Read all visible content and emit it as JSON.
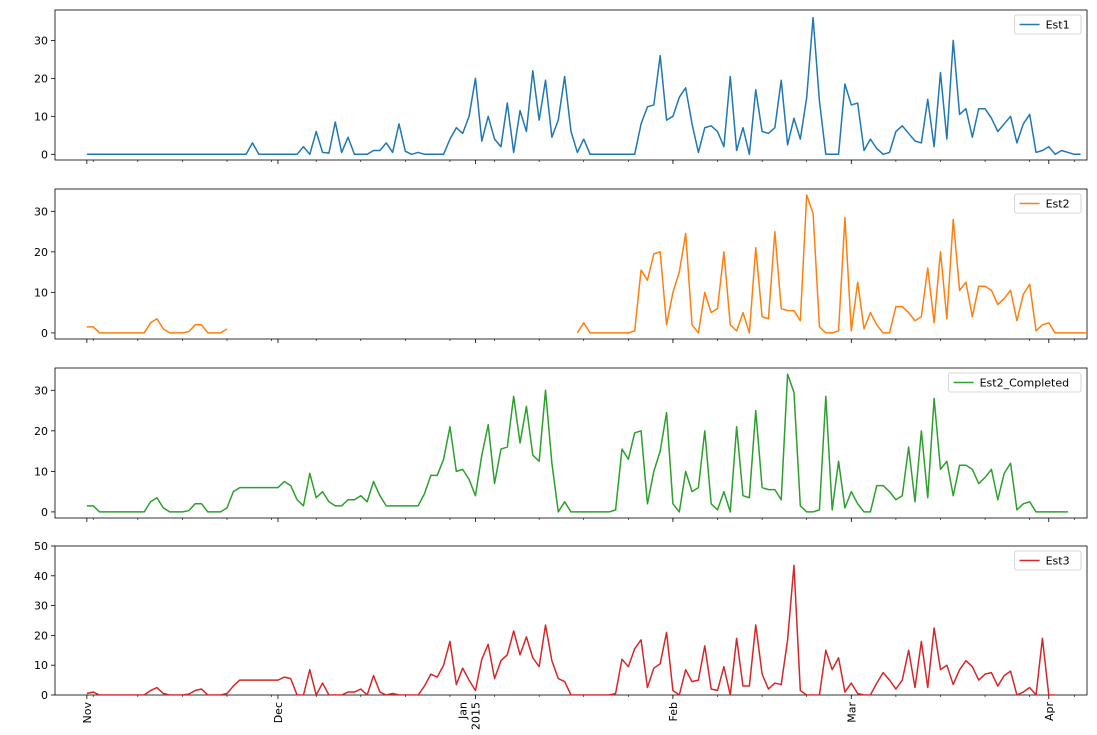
{
  "chart_data": {
    "type": "line",
    "x_range": [
      "2014-10-27",
      "2015-04-07"
    ],
    "x_ticks": [
      {
        "date": "2014-11-01",
        "label": "Nov"
      },
      {
        "date": "2014-12-01",
        "label": "Dec"
      },
      {
        "date": "2015-01-01",
        "label": "Jan\n2015"
      },
      {
        "date": "2015-02-01",
        "label": "Feb"
      },
      {
        "date": "2015-03-01",
        "label": "Mar"
      },
      {
        "date": "2015-04-01",
        "label": "Apr"
      }
    ],
    "minor_ticks_weekly": true,
    "x_start": "2014-11-01",
    "x_step_days": 1,
    "legend_loc": "upper right",
    "grid": false,
    "panels": [
      {
        "series": {
          "name": "Est1",
          "color": "#1f77b4"
        },
        "ylim": [
          -1.5,
          38
        ],
        "yticks": [
          0,
          10,
          20,
          30
        ],
        "values": [
          0,
          0,
          0,
          0,
          0,
          0,
          0,
          0,
          0,
          0,
          0,
          0,
          0,
          0,
          0,
          0,
          0,
          0,
          0,
          0,
          0,
          0,
          0,
          0,
          0,
          0,
          3,
          0,
          0,
          0,
          0,
          0,
          0,
          0,
          2,
          0,
          6,
          0.5,
          0.3,
          8.5,
          0.5,
          4.5,
          0,
          0,
          0,
          1,
          1,
          3,
          0.5,
          8,
          0.8,
          0,
          0.5,
          0,
          0,
          0,
          0,
          4,
          7,
          5.5,
          10,
          20,
          3.5,
          10,
          4,
          2,
          13.5,
          0.5,
          11.5,
          6,
          22,
          9,
          19.5,
          4.5,
          9,
          20.5,
          6,
          0.5,
          4,
          0,
          0,
          0,
          0,
          0,
          0,
          0,
          0,
          8,
          12.5,
          13,
          26,
          9,
          10,
          15,
          17.5,
          8,
          0.5,
          7,
          7.5,
          6,
          2,
          20.5,
          1,
          7,
          0,
          17,
          6,
          5.5,
          7,
          19.5,
          2.5,
          9.5,
          4,
          15,
          36,
          14,
          0,
          0,
          0,
          18.5,
          13,
          13.5,
          1,
          4,
          1.5,
          0,
          0.5,
          6,
          7.5,
          5.5,
          3.5,
          3,
          14.5,
          2,
          21.5,
          4,
          30,
          10.5,
          12,
          4.5,
          12,
          12,
          9.5,
          6,
          8,
          10,
          3,
          8,
          10.5,
          0.5,
          1,
          2,
          0,
          1,
          0.5,
          0,
          0
        ]
      },
      {
        "series": {
          "name": "Est2",
          "color": "#ff7f0e"
        },
        "ylim": [
          -1.5,
          35.5
        ],
        "yticks": [
          0,
          10,
          20,
          30
        ],
        "values": [
          1.5,
          1.5,
          0,
          0,
          0,
          0,
          0,
          0,
          0,
          0,
          2.5,
          3.5,
          1,
          0,
          0,
          0,
          0.3,
          2,
          2,
          0,
          0,
          0,
          1,
          null,
          null,
          null,
          null,
          null,
          null,
          null,
          null,
          null,
          null,
          null,
          null,
          null,
          null,
          null,
          null,
          null,
          null,
          null,
          null,
          null,
          null,
          null,
          null,
          null,
          null,
          null,
          null,
          null,
          null,
          null,
          null,
          null,
          null,
          null,
          null,
          null,
          null,
          null,
          null,
          null,
          null,
          null,
          null,
          null,
          null,
          null,
          null,
          null,
          null,
          null,
          null,
          null,
          null,
          0,
          2.5,
          0,
          0,
          0,
          0,
          0,
          0,
          0,
          0.5,
          15.5,
          13,
          19.5,
          20,
          2,
          10,
          15,
          24.5,
          2,
          0,
          10,
          5,
          6,
          20,
          2,
          0.5,
          5,
          0,
          21,
          4,
          3.5,
          25,
          6,
          5.5,
          5.5,
          3,
          34,
          29.5,
          1.5,
          0,
          0,
          0.5,
          28.5,
          0.5,
          12.5,
          1,
          5,
          2,
          0,
          0,
          6.5,
          6.5,
          5,
          3,
          4,
          16,
          2.5,
          20,
          3.5,
          28,
          10.5,
          12.5,
          4,
          11.5,
          11.5,
          10.5,
          7,
          8.5,
          10.5,
          3,
          9.5,
          12,
          0.5,
          2,
          2.5,
          0,
          0,
          0,
          0,
          0,
          0
        ]
      },
      {
        "series": {
          "name": "Est2_Completed",
          "color": "#2ca02c"
        },
        "ylim": [
          -1.5,
          35.5
        ],
        "yticks": [
          0,
          10,
          20,
          30
        ],
        "values": [
          1.5,
          1.5,
          0,
          0,
          0,
          0,
          0,
          0,
          0,
          0,
          2.5,
          3.5,
          1,
          0,
          0,
          0,
          0.3,
          2,
          2,
          0,
          0,
          0,
          1,
          5,
          6,
          6,
          6,
          6,
          6,
          6,
          6,
          7.5,
          6.5,
          3,
          1.5,
          9.5,
          3.5,
          5,
          2.5,
          1.5,
          1.5,
          3,
          3,
          4,
          2.5,
          7.5,
          4,
          1.5,
          1.5,
          1.5,
          1.5,
          1.5,
          1.5,
          4.5,
          9,
          9,
          13,
          21,
          10,
          10.5,
          8,
          4,
          14,
          21.5,
          7,
          15.5,
          16,
          28.5,
          17,
          26,
          14,
          12.5,
          30,
          12,
          0,
          2.5,
          0,
          0,
          0,
          0,
          0,
          0,
          0,
          0.5,
          15.5,
          13,
          19.5,
          20,
          2,
          10,
          15,
          24.5,
          2,
          0,
          10,
          5,
          6,
          20,
          2,
          0.5,
          5,
          0,
          21,
          4,
          3.5,
          25,
          6,
          5.5,
          5.5,
          3,
          34,
          29.5,
          1.5,
          0,
          0,
          0.5,
          28.5,
          0.5,
          12.5,
          1,
          5,
          2,
          0,
          0,
          6.5,
          6.5,
          5,
          3,
          4,
          16,
          2.5,
          20,
          3.5,
          28,
          10.5,
          12.5,
          4,
          11.5,
          11.5,
          10.5,
          7,
          8.5,
          10.5,
          3,
          9.5,
          12,
          0.5,
          2,
          2.5,
          0,
          0,
          0,
          0,
          0,
          0
        ]
      },
      {
        "series": {
          "name": "Est3",
          "color": "#d62728"
        },
        "ylim": [
          0,
          50
        ],
        "yticks": [
          0,
          10,
          20,
          30,
          40,
          50
        ],
        "values": [
          0.5,
          1,
          0,
          0,
          0,
          0,
          0,
          0,
          0,
          0,
          1.5,
          2.5,
          0.5,
          0,
          0,
          0,
          0.3,
          1.5,
          2,
          0,
          0,
          0,
          0.5,
          3,
          5,
          5,
          5,
          5,
          5,
          5,
          5,
          6,
          5.5,
          0,
          0,
          8.5,
          0,
          4,
          0,
          0,
          0,
          1,
          1,
          2,
          0,
          6.5,
          1,
          0,
          0.5,
          0,
          0,
          0,
          0,
          3,
          7,
          6,
          10,
          18,
          3.5,
          9,
          5,
          1.5,
          12,
          17,
          5.5,
          11.5,
          13.5,
          21.5,
          13.5,
          19.5,
          12.5,
          9.5,
          23.5,
          11.5,
          5.5,
          4.5,
          0,
          0,
          0,
          0,
          0,
          0,
          0,
          0.5,
          12,
          9.5,
          15.5,
          18.5,
          2.5,
          9,
          10.5,
          21,
          1.5,
          0,
          8.5,
          4.5,
          5,
          16.5,
          2,
          1.5,
          9.5,
          0,
          19,
          3,
          3,
          23.5,
          7,
          2,
          4,
          3.5,
          18.5,
          43.5,
          1.5,
          0,
          0,
          0,
          15,
          8.5,
          12.5,
          1,
          4,
          0.5,
          0,
          0,
          4,
          7.5,
          5,
          2,
          5,
          15,
          2.5,
          18,
          2.5,
          22.5,
          8.5,
          10,
          3.5,
          8.5,
          11.5,
          9.5,
          5,
          7,
          7.5,
          3,
          6.5,
          8,
          0,
          1,
          2.5,
          0,
          19,
          0,
          0
        ]
      }
    ]
  }
}
